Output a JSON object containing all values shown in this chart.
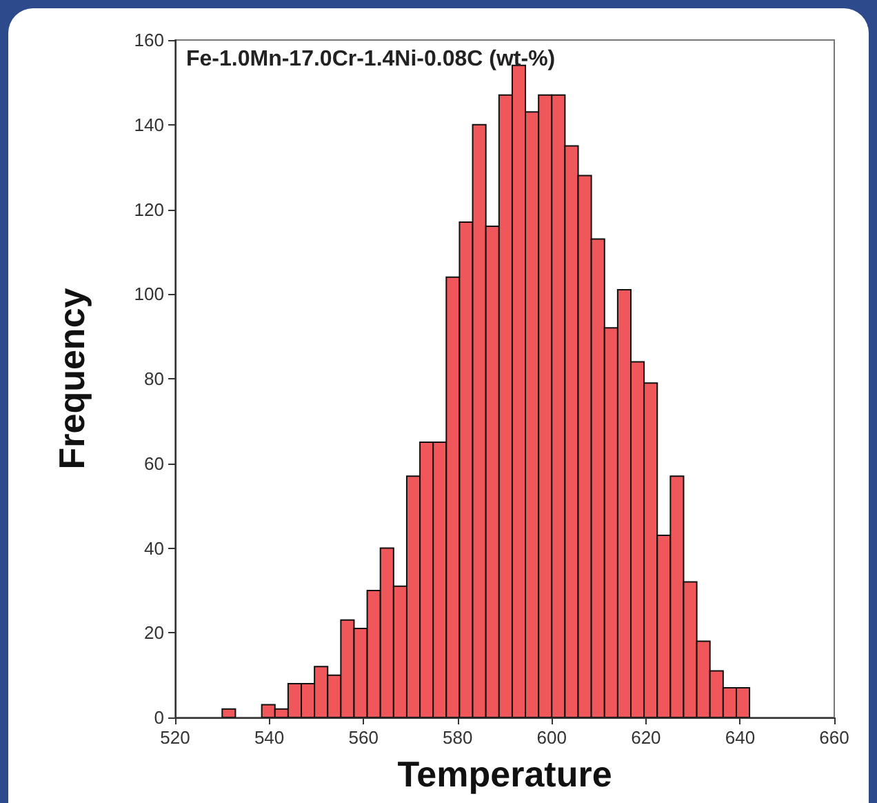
{
  "chart_data": {
    "type": "histogram",
    "title": "Fe-1.0Mn-17.0Cr-1.4Ni-0.08C (wt-%)",
    "xlabel": "Temperature",
    "ylabel": "Frequency",
    "bins": [
      530,
      532.8,
      535.6,
      538.4,
      541.2,
      544,
      546.8,
      549.6,
      552.4,
      555.2,
      558,
      560.8,
      563.6,
      566.4,
      569.2,
      572,
      574.8,
      577.6,
      580.4,
      583.2,
      586,
      588.8,
      591.6,
      594.4,
      597.2,
      600,
      602.8,
      605.6,
      608.4,
      611.2,
      614,
      616.8,
      619.6,
      622.4,
      625.2,
      628,
      630.8,
      633.6,
      636.4,
      639.2,
      642
    ],
    "values": [
      2,
      0,
      0,
      3,
      2,
      8,
      8,
      12,
      10,
      23,
      21,
      30,
      40,
      31,
      57,
      65,
      65,
      104,
      117,
      140,
      116,
      147,
      154,
      143,
      147,
      147,
      135,
      128,
      113,
      92,
      101,
      84,
      79,
      43,
      57,
      32,
      18,
      11,
      7,
      7
    ],
    "color": "#f0575a",
    "xlim": [
      520,
      660
    ],
    "xticks": [
      520,
      540,
      560,
      580,
      600,
      620,
      640,
      660
    ],
    "ylim": [
      0,
      160
    ],
    "yticks": [
      0,
      20,
      40,
      60,
      80,
      100,
      120,
      140,
      160
    ],
    "grid": false
  }
}
